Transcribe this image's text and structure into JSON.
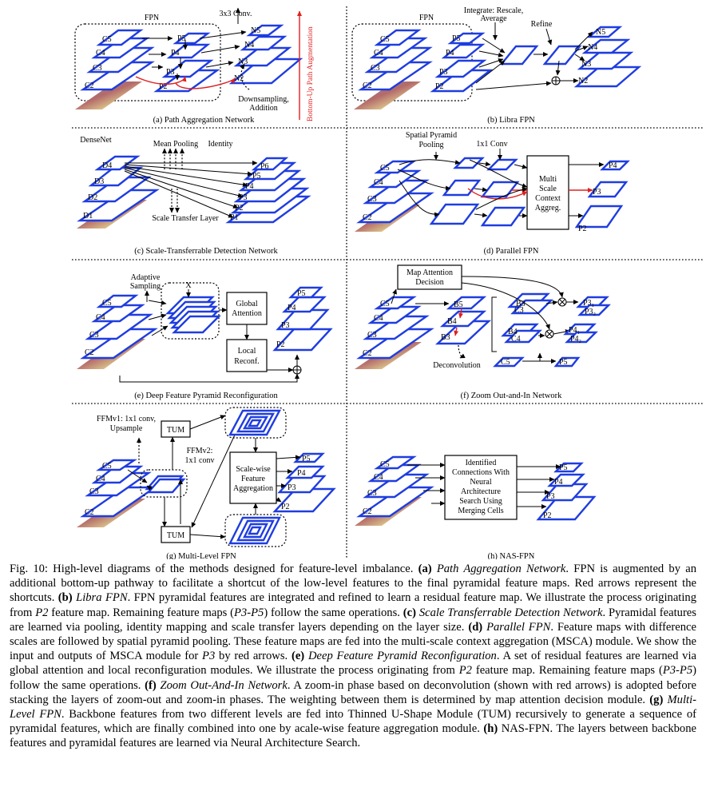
{
  "panels": {
    "a": {
      "caption": "(a) Path Aggregation Network",
      "backbone": [
        "C5",
        "C4",
        "C3",
        "C2"
      ],
      "fpn": [
        "P5",
        "P4",
        "P3",
        "P2"
      ],
      "outputs": [
        "N5",
        "N4",
        "N3",
        "N2"
      ],
      "labels": {
        "fpn": "FPN",
        "conv": "3x3 Conv.",
        "down1": "Downsampling,",
        "down2": "Addition",
        "bottom_up": "Bottom-Up Path Augmentation"
      }
    },
    "b": {
      "caption": "(b) Libra FPN",
      "backbone": [
        "C5",
        "C4",
        "C3",
        "C2"
      ],
      "fpn": [
        "P5",
        "P4",
        "P3",
        "P2"
      ],
      "outputs": [
        "N5",
        "N4",
        "N3",
        "N2"
      ],
      "labels": {
        "fpn": "FPN",
        "integrate1": "Integrate: Rescale,",
        "integrate2": "Average",
        "refine": "Refine"
      }
    },
    "c": {
      "caption": "(c) Scale-Transferrable Detection Network",
      "backbone": [
        "D4",
        "D3",
        "D2",
        "D1"
      ],
      "outputs": [
        "P6",
        "P5",
        "P4",
        "P3",
        "P2",
        "P1"
      ],
      "labels": {
        "densenet": "DenseNet",
        "meanpool": "Mean Pooling",
        "identity": "Identity",
        "stl": "Scale Transfer Layer"
      }
    },
    "d": {
      "caption": "(d) Parallel FPN",
      "backbone": [
        "C5",
        "C4",
        "C3",
        "C2"
      ],
      "outputs": [
        "P4",
        "P3",
        "P2"
      ],
      "labels": {
        "spp1": "Spatial Pyramid",
        "spp2": "Pooling",
        "conv": "1x1 Conv",
        "msca": [
          "Multi",
          "Scale",
          "Context",
          "Aggreg."
        ]
      }
    },
    "e": {
      "caption": "(e) Deep Feature Pyramid Reconfiguration",
      "backbone": [
        "C5",
        "C4",
        "C3",
        "C2"
      ],
      "outputs": [
        "P5",
        "P4",
        "P3",
        "P2"
      ],
      "labels": {
        "adaptive1": "Adaptive",
        "adaptive2": "Sampling",
        "x": "X",
        "global": [
          "Global",
          "Attention"
        ],
        "local": [
          "Local",
          "Reconf."
        ]
      }
    },
    "f": {
      "caption": "(f) Zoom Out-and-In Network",
      "backbone": [
        "C5",
        "C4",
        "C3",
        "C2"
      ],
      "zoom": [
        "B5",
        "B4",
        "B3"
      ],
      "mid": [
        "B3",
        "C3",
        "B4",
        "C4",
        "C5"
      ],
      "outputs": [
        "P3₁",
        "P3₂",
        "P4₁",
        "P4₂",
        "P5"
      ],
      "labels": {
        "mad": [
          "Map Attention",
          "Decision"
        ],
        "deconv": "Deconvolution"
      }
    },
    "g": {
      "caption": "(g) Multi-Level FPN",
      "backbone": [
        "C5",
        "C4",
        "C3",
        "C2"
      ],
      "outputs": [
        "P5",
        "P4",
        "P3",
        "P2"
      ],
      "labels": {
        "ffm1a": "FFMv1: 1x1 conv,",
        "ffm1b": "Upsample",
        "ffm2a": "FFMv2:",
        "ffm2b": "1x1 conv",
        "tum": "TUM",
        "sfam": [
          "Scale-wise",
          "Feature",
          "Aggregation"
        ]
      }
    },
    "h": {
      "caption": "(h) NAS-FPN",
      "backbone": [
        "C5",
        "C4",
        "C3",
        "C2"
      ],
      "outputs": [
        "P5",
        "P4",
        "P3",
        "P2"
      ],
      "labels": {
        "nas": [
          "Identified",
          "Connections With",
          "Neural",
          "Architecture",
          "Search Using",
          "Merging Cells"
        ]
      }
    }
  },
  "caption": {
    "fig_label": "Fig. 10:",
    "intro": " High-level diagrams of the methods designed for feature-level imbalance. ",
    "a_tag": "(a)",
    "a_name": "Path Aggregation Network",
    "a_text": ". FPN is augmented by an additional bottom-up pathway to facilitate a shortcut of the low-level features to the final pyramidal feature maps. Red arrows represent the shortcuts. ",
    "b_tag": "(b)",
    "b_name": "Libra FPN",
    "b_text1": ". FPN pyramidal features are integrated and refined to learn a residual feature map. We illustrate the process originating from ",
    "b_p2": "P2",
    "b_text2": " feature map. Remaining feature maps (",
    "b_range": "P3-P5",
    "b_text3": ") follow the same operations. ",
    "c_tag": "(c)",
    "c_name": "Scale Transferrable Detection Network",
    "c_text": ". Pyramidal features are learned via pooling, identity mapping and scale transfer layers depending on the layer size. ",
    "d_tag": "(d)",
    "d_name": "Parallel FPN",
    "d_text1": ". Feature maps with difference scales are followed by spatial pyramid pooling. These feature maps are fed into the multi-scale context aggregation (MSCA) module. We show the input and outputs of MSCA module for ",
    "d_p3": "P3",
    "d_text2": " by red arrows. ",
    "e_tag": "(e)",
    "e_name": "Deep Feature Pyramid Reconfiguration",
    "e_text1": ". A set of residual features are learned via global attention and local reconfiguration modules. We illustrate the process originating from ",
    "e_p2": "P2",
    "e_text2": " feature map. Remaining feature maps (",
    "e_range": "P3-P5",
    "e_text3": ") follow the same operations. ",
    "f_tag": "(f)",
    "f_name": "Zoom Out-And-In Network",
    "f_text": ". A zoom-in phase based on deconvolution (shown with red arrows) is adopted before stacking the layers of zoom-out and zoom-in phases. The weighting between them is determined by map attention decision module. ",
    "g_tag": "(g)",
    "g_name": "Multi-Level FPN",
    "g_text": ". Backbone features from two different levels are fed into Thinned U-Shape Module (TUM) recursively to generate a sequence of pyramidal features, which are finally combined into one by acale-wise feature aggregation module. ",
    "h_tag": "(h)",
    "h_text": " NAS-FPN. The layers between backbone features and pyramidal features are learned via Neural Architecture Search."
  }
}
